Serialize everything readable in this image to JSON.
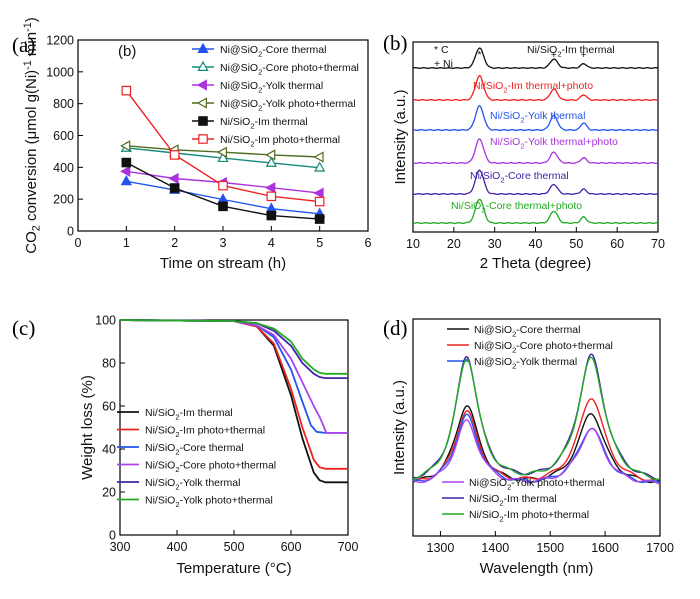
{
  "chart_data": [
    {
      "panel": "(a)",
      "inner_label": "(b)",
      "type": "line",
      "xlabel": "Time on stream (h)",
      "ylabel": "CO_2 conversion (μmol g(Ni)^-1 min^-1)",
      "xlim": [
        0,
        6
      ],
      "ylim": [
        0,
        1200
      ],
      "xticks": [
        0,
        1,
        2,
        3,
        4,
        5,
        6
      ],
      "yticks": [
        0,
        200,
        400,
        600,
        800,
        1000,
        1200
      ],
      "legend_position": "top-right",
      "x": [
        1,
        2,
        3,
        4,
        5
      ],
      "series": [
        {
          "name": "Ni@SiO_2-Core thermal",
          "color": "#2255ee",
          "marker": "triangle-up-filled",
          "values": [
            312,
            258,
            198,
            140,
            108
          ]
        },
        {
          "name": "Ni@SiO_2-Core photo+thermal",
          "color": "#138a7a",
          "marker": "triangle-up-open",
          "values": [
            522,
            490,
            458,
            428,
            398
          ]
        },
        {
          "name": "Ni@SiO_2-Yolk thermal",
          "color": "#aa33dd",
          "marker": "triangle-left-filled",
          "values": [
            375,
            330,
            305,
            272,
            238
          ]
        },
        {
          "name": "Ni@SiO_2-Yolk photo+thermal",
          "color": "#4f6b1f",
          "marker": "triangle-left-open",
          "values": [
            535,
            510,
            495,
            478,
            465
          ]
        },
        {
          "name": "Ni/SiO_2-Im thermal",
          "color": "#111111",
          "marker": "square-filled",
          "values": [
            430,
            270,
            155,
            97,
            75
          ]
        },
        {
          "name": "Ni/SiO_2-Im photo+thermal",
          "color": "#ee2222",
          "marker": "square-open",
          "values": [
            882,
            478,
            285,
            218,
            185
          ]
        }
      ]
    },
    {
      "panel": "(b)",
      "type": "line",
      "xlabel": "2 Theta (degree)",
      "ylabel": "Intensity (a.u.)",
      "xlim": [
        10,
        70
      ],
      "xticks": [
        10,
        20,
        30,
        40,
        50,
        60,
        70
      ],
      "peak_legend": [
        "* C",
        "+ Ni"
      ],
      "peak_markers": [
        {
          "symbol": "*",
          "x": 26.3
        },
        {
          "symbol": "+",
          "x": 44.5
        },
        {
          "symbol": "+",
          "x": 51.8
        }
      ],
      "series": [
        {
          "name": "Ni/SiO_2-Im thermal",
          "color": "#111111",
          "peaks": [
            [
              26.3,
              1.0
            ],
            [
              44.5,
              0.45
            ],
            [
              51.8,
              0.22
            ]
          ]
        },
        {
          "name": "Ni/SiO_2-Im thermal+photo",
          "color": "#ee2222",
          "peaks": [
            [
              26.3,
              1.0
            ],
            [
              44.5,
              0.45
            ],
            [
              51.8,
              0.22
            ]
          ]
        },
        {
          "name": "Ni/SiO_2-Yolk thermal",
          "color": "#2255ee",
          "peaks": [
            [
              26.3,
              1.0
            ],
            [
              44.5,
              0.6
            ],
            [
              51.8,
              0.3
            ]
          ]
        },
        {
          "name": "Ni/SiO_2-Yolk thermal+photo",
          "color": "#aa33dd",
          "peaks": [
            [
              26.3,
              1.0
            ],
            [
              44.5,
              0.45
            ],
            [
              51.8,
              0.22
            ]
          ]
        },
        {
          "name": "Ni/SiO_2-Core thermal",
          "color": "#4422aa",
          "peaks": [
            [
              26.3,
              1.0
            ],
            [
              44.5,
              0.4
            ],
            [
              51.8,
              0.2
            ]
          ]
        },
        {
          "name": "Ni/SiO_2-Core thermal+photo",
          "color": "#22aa22",
          "peaks": [
            [
              26.3,
              1.0
            ],
            [
              44.5,
              0.5
            ],
            [
              51.8,
              0.25
            ]
          ]
        }
      ]
    },
    {
      "panel": "(c)",
      "type": "line",
      "xlabel": "Temperature (°C)",
      "ylabel": "Weight loss (%)",
      "xlim": [
        300,
        700
      ],
      "ylim": [
        0,
        100
      ],
      "xticks": [
        300,
        400,
        500,
        600,
        700
      ],
      "yticks": [
        0,
        20,
        40,
        60,
        80,
        100
      ],
      "legend_position": "center-left",
      "series": [
        {
          "name": "Ni/SiO_2-Im thermal",
          "color": "#111111",
          "x": [
            300,
            500,
            540,
            570,
            600,
            620,
            640,
            650,
            660,
            700
          ],
          "values": [
            100,
            99.5,
            97,
            88,
            65,
            45,
            29,
            25.5,
            24.5,
            24.5
          ]
        },
        {
          "name": "Ni/SiO_2-Im photo+thermal",
          "color": "#ee2222",
          "x": [
            300,
            500,
            540,
            570,
            600,
            620,
            640,
            650,
            660,
            700
          ],
          "values": [
            100,
            99.5,
            97,
            89,
            68,
            50,
            35,
            31.5,
            30.8,
            30.8
          ]
        },
        {
          "name": "Ni/SiO_2-Core thermal",
          "color": "#2255ee",
          "x": [
            300,
            500,
            540,
            570,
            600,
            620,
            635,
            645,
            660,
            700
          ],
          "values": [
            100,
            99.5,
            97.5,
            92,
            77,
            62,
            51,
            48,
            47.5,
            47.5
          ]
        },
        {
          "name": "Ni/SiO_2-Core photo+thermal",
          "color": "#aa44ee",
          "x": [
            300,
            500,
            540,
            570,
            600,
            620,
            640,
            650,
            655,
            658,
            662,
            700
          ],
          "values": [
            100,
            99.5,
            97.5,
            93,
            82,
            71,
            60,
            55,
            52,
            50,
            47.5,
            47.5
          ]
        },
        {
          "name": "Ni/SiO_2-Yolk thermal",
          "color": "#4422aa",
          "x": [
            300,
            500,
            540,
            570,
            600,
            620,
            640,
            650,
            660,
            700
          ],
          "values": [
            100,
            99.5,
            98.5,
            95,
            88,
            80,
            75,
            73.5,
            73,
            73
          ]
        },
        {
          "name": "Ni/SiO_2-Yolk photo+thermal",
          "color": "#22aa22",
          "x": [
            300,
            500,
            540,
            570,
            600,
            620,
            640,
            650,
            660,
            700
          ],
          "values": [
            100,
            99.5,
            98.5,
            96,
            90,
            82,
            77,
            75.5,
            75,
            75
          ]
        }
      ]
    },
    {
      "panel": "(d)",
      "type": "line",
      "xlabel": "Wavelength (nm)",
      "ylabel": "Intensity (a.u.)",
      "xlim": [
        1250,
        1700
      ],
      "xticks": [
        1300,
        1400,
        1500,
        1600,
        1700
      ],
      "legend_position": "top-center and bottom-center",
      "series": [
        {
          "name": "Ni@SiO_2-Core thermal",
          "color": "#111111",
          "peak_heights": [
            0.62,
            0.56
          ]
        },
        {
          "name": "Ni@SiO_2-Core photo+thermal",
          "color": "#ee2222",
          "peak_heights": [
            0.57,
            0.68
          ]
        },
        {
          "name": "Ni@SiO_2-Yolk thermal",
          "color": "#2255ee",
          "peak_heights": [
            0.54,
            0.45
          ]
        },
        {
          "name": "Ni@SiO_2-Yolk photo+thermal",
          "color": "#aa44ee",
          "peak_heights": [
            0.5,
            0.44
          ]
        },
        {
          "name": "Ni/SiO_2-Im thermal",
          "color": "#4422aa",
          "peak_heights": [
            0.98,
            0.99
          ]
        },
        {
          "name": "Ni/SiO_2-Im photo+thermal",
          "color": "#22aa22",
          "peak_heights": [
            0.97,
            0.97
          ]
        }
      ]
    }
  ]
}
